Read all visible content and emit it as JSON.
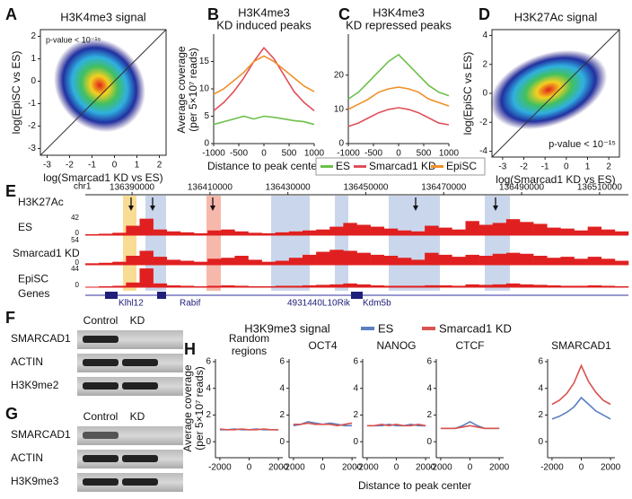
{
  "chart_data": [
    {
      "panel": "A",
      "type": "scatter",
      "title": "H3K4me3 signal",
      "annotation": "p-value < 10⁻¹⁵",
      "x_label": "log(Smarcad1 KD vs ES)",
      "y_label": "log(EpiSC vs ES)",
      "xlim": [
        -3.3,
        2.3
      ],
      "ylim": [
        -3.3,
        2.3
      ],
      "xticks": [
        -3,
        -2,
        -1,
        0,
        1,
        2
      ],
      "yticks": [
        -3,
        -2,
        -1,
        0,
        1,
        2
      ]
    },
    {
      "panel": "B",
      "type": "line",
      "title": [
        "H3K4me3",
        "KD induced peaks"
      ],
      "y_label": [
        "Average coverage",
        "(per 5×10⁷ reads)"
      ],
      "x_label": "Distance to peak center",
      "x": [
        -1000,
        -800,
        -600,
        -400,
        -200,
        0,
        200,
        400,
        600,
        800,
        1000
      ],
      "series": [
        {
          "name": "ES",
          "color": "#6cc04a",
          "values": [
            3.5,
            4,
            4.5,
            5,
            4.5,
            5,
            4.8,
            4.5,
            4.2,
            4,
            3.5
          ]
        },
        {
          "name": "Smarcad1 KD",
          "color": "#e0505a",
          "values": [
            6,
            7.5,
            9.5,
            12,
            15,
            17.5,
            15.5,
            12.5,
            9.5,
            7.5,
            6
          ]
        },
        {
          "name": "EpiSC",
          "color": "#f0902a",
          "values": [
            9,
            10,
            11.5,
            13,
            15,
            16,
            15,
            13.5,
            12,
            10.5,
            9.5
          ]
        }
      ],
      "xlim": [
        -1000,
        1000
      ],
      "ylim": [
        0,
        20
      ],
      "xticks": [
        -1000,
        -500,
        0,
        500,
        1000
      ],
      "yticks": [
        0,
        5,
        10,
        15
      ]
    },
    {
      "panel": "C",
      "type": "line",
      "title": [
        "H3K4me3",
        "KD repressed peaks"
      ],
      "x": [
        -1000,
        -800,
        -600,
        -400,
        -200,
        0,
        200,
        400,
        600,
        800,
        1000
      ],
      "series": [
        {
          "color": "#6cc04a",
          "values": [
            13,
            15,
            18,
            21,
            24,
            26,
            23,
            20,
            17,
            15,
            14
          ]
        },
        {
          "color": "#e0505a",
          "values": [
            5,
            6,
            7.5,
            9,
            10,
            10.5,
            10,
            9,
            7.5,
            6,
            5.5
          ]
        },
        {
          "color": "#f0902a",
          "values": [
            10,
            11.5,
            13,
            15,
            16,
            16.5,
            16,
            15,
            13,
            12,
            11
          ]
        }
      ],
      "xlim": [
        -1000,
        1000
      ],
      "ylim": [
        0,
        32
      ],
      "xticks": [
        -1000,
        -500,
        0,
        500,
        1000
      ],
      "yticks": [
        0,
        10,
        20
      ]
    },
    {
      "panel": "D",
      "type": "scatter",
      "title": "H3K27Ac signal",
      "annotation": "p-value < 10⁻¹⁵",
      "x_label": "log(Smarcad1 KD vs ES)",
      "y_label": "log(EpiSC vs ES)",
      "xlim": [
        -3.5,
        2.5
      ],
      "ylim": [
        -4.4,
        4.4
      ],
      "xticks": [
        -3,
        -2,
        -1,
        0,
        1,
        2
      ],
      "yticks": [
        -4,
        -2,
        0,
        2,
        4
      ]
    },
    {
      "panel": "H",
      "type": "multiline",
      "title": "H3K9me3 signal",
      "legend": [
        {
          "name": "ES",
          "color": "#5b7fc0"
        },
        {
          "name": "Smarcad1 KD",
          "color": "#d9534f"
        }
      ],
      "y_label": [
        "Average coverage",
        "(per 5×10⁷ reads)"
      ],
      "x_label": "Distance to peak center",
      "x": [
        -2000,
        -1500,
        -1000,
        -500,
        0,
        500,
        1000,
        1500,
        2000
      ],
      "xlim": [
        -2300,
        2300
      ],
      "ylim": [
        -1.2,
        6.2
      ],
      "xticks": [
        -2000,
        0,
        2000
      ],
      "yticks": [
        0,
        2,
        4,
        6
      ],
      "subplots": [
        {
          "title": [
            "Random",
            "regions"
          ],
          "series": [
            {
              "values": [
                0.9,
                0.9,
                0.95,
                0.9,
                0.9,
                0.95,
                0.9,
                0.9,
                0.9
              ]
            },
            {
              "values": [
                0.95,
                0.9,
                0.9,
                0.95,
                0.9,
                0.9,
                0.95,
                0.9,
                0.9
              ]
            }
          ]
        },
        {
          "title": [
            "OCT4"
          ],
          "series": [
            {
              "values": [
                1.2,
                1.3,
                1.5,
                1.4,
                1.3,
                1.4,
                1.3,
                1.2,
                1.2
              ]
            },
            {
              "values": [
                1.3,
                1.3,
                1.4,
                1.3,
                1.3,
                1.3,
                1.2,
                1.3,
                1.4
              ]
            }
          ]
        },
        {
          "title": [
            "NANOG"
          ],
          "series": [
            {
              "values": [
                1.2,
                1.2,
                1.2,
                1.3,
                1.2,
                1.2,
                1.3,
                1.2,
                1.2
              ]
            },
            {
              "values": [
                1.2,
                1.2,
                1.3,
                1.2,
                1.3,
                1.2,
                1.2,
                1.3,
                1.2
              ]
            }
          ]
        },
        {
          "title": [
            "CTCF"
          ],
          "series": [
            {
              "values": [
                1.0,
                1.0,
                1.0,
                1.2,
                1.5,
                1.2,
                1.0,
                1.0,
                1.0
              ]
            },
            {
              "values": [
                1.0,
                1.0,
                1.0,
                1.1,
                1.2,
                1.1,
                1.0,
                1.0,
                1.0
              ]
            }
          ]
        },
        {
          "title": [
            "SMARCAD1"
          ],
          "series": [
            {
              "values": [
                1.7,
                1.9,
                2.2,
                2.6,
                3.3,
                2.8,
                2.3,
                2.0,
                1.7
              ]
            },
            {
              "values": [
                2.8,
                3.1,
                3.6,
                4.4,
                5.7,
                4.5,
                3.7,
                3.1,
                2.8
              ]
            }
          ]
        }
      ]
    }
  ],
  "genome_browser": {
    "panel": "E",
    "chrom": "chr1",
    "mark": "H3K27Ac",
    "xlim": [
      136378000,
      136517400
    ],
    "coordinates": [
      136390000,
      136410000,
      136430000,
      136450000,
      136470000,
      136490000,
      136510000
    ],
    "tracks": [
      {
        "name": "ES",
        "ylim": [
          0,
          42
        ],
        "values": [
          2,
          3,
          5,
          20,
          35,
          12,
          8,
          6,
          4,
          10,
          12,
          8,
          5,
          4,
          6,
          8,
          10,
          12,
          18,
          26,
          22,
          18,
          14,
          10,
          8,
          20,
          16,
          12,
          30,
          22,
          26,
          34,
          28,
          24,
          16,
          14,
          10,
          18,
          12,
          8
        ]
      },
      {
        "name": "Smarcad1 KD",
        "ylim": [
          0,
          54
        ],
        "values": [
          3,
          4,
          6,
          18,
          28,
          16,
          10,
          8,
          6,
          12,
          14,
          18,
          10,
          6,
          8,
          14,
          20,
          26,
          30,
          28,
          24,
          20,
          18,
          14,
          10,
          24,
          20,
          16,
          20,
          18,
          22,
          24,
          22,
          18,
          14,
          16,
          12,
          16,
          12,
          8
        ]
      },
      {
        "name": "EpiSC",
        "ylim": [
          0,
          44
        ],
        "values": [
          1,
          2,
          3,
          10,
          40,
          8,
          4,
          3,
          2,
          3,
          4,
          3,
          2,
          2,
          3,
          3,
          4,
          5,
          6,
          8,
          6,
          4,
          3,
          3,
          3,
          4,
          4,
          3,
          6,
          5,
          6,
          8,
          6,
          5,
          4,
          3,
          3,
          4,
          3,
          2
        ]
      }
    ],
    "genes_label": "Genes",
    "genes": [
      "Klhl12",
      "Rabif",
      "4931440L10Rik",
      "Kdm5b"
    ]
  },
  "blots": [
    {
      "panel": "F",
      "columns": [
        "Control",
        "KD"
      ],
      "rows": [
        "SMARCAD1",
        "ACTIN",
        "H3K9me2"
      ]
    },
    {
      "panel": "G",
      "columns": [
        "Control",
        "KD"
      ],
      "rows": [
        "SMARCAD1",
        "ACTIN",
        "H3K9me3"
      ]
    }
  ]
}
